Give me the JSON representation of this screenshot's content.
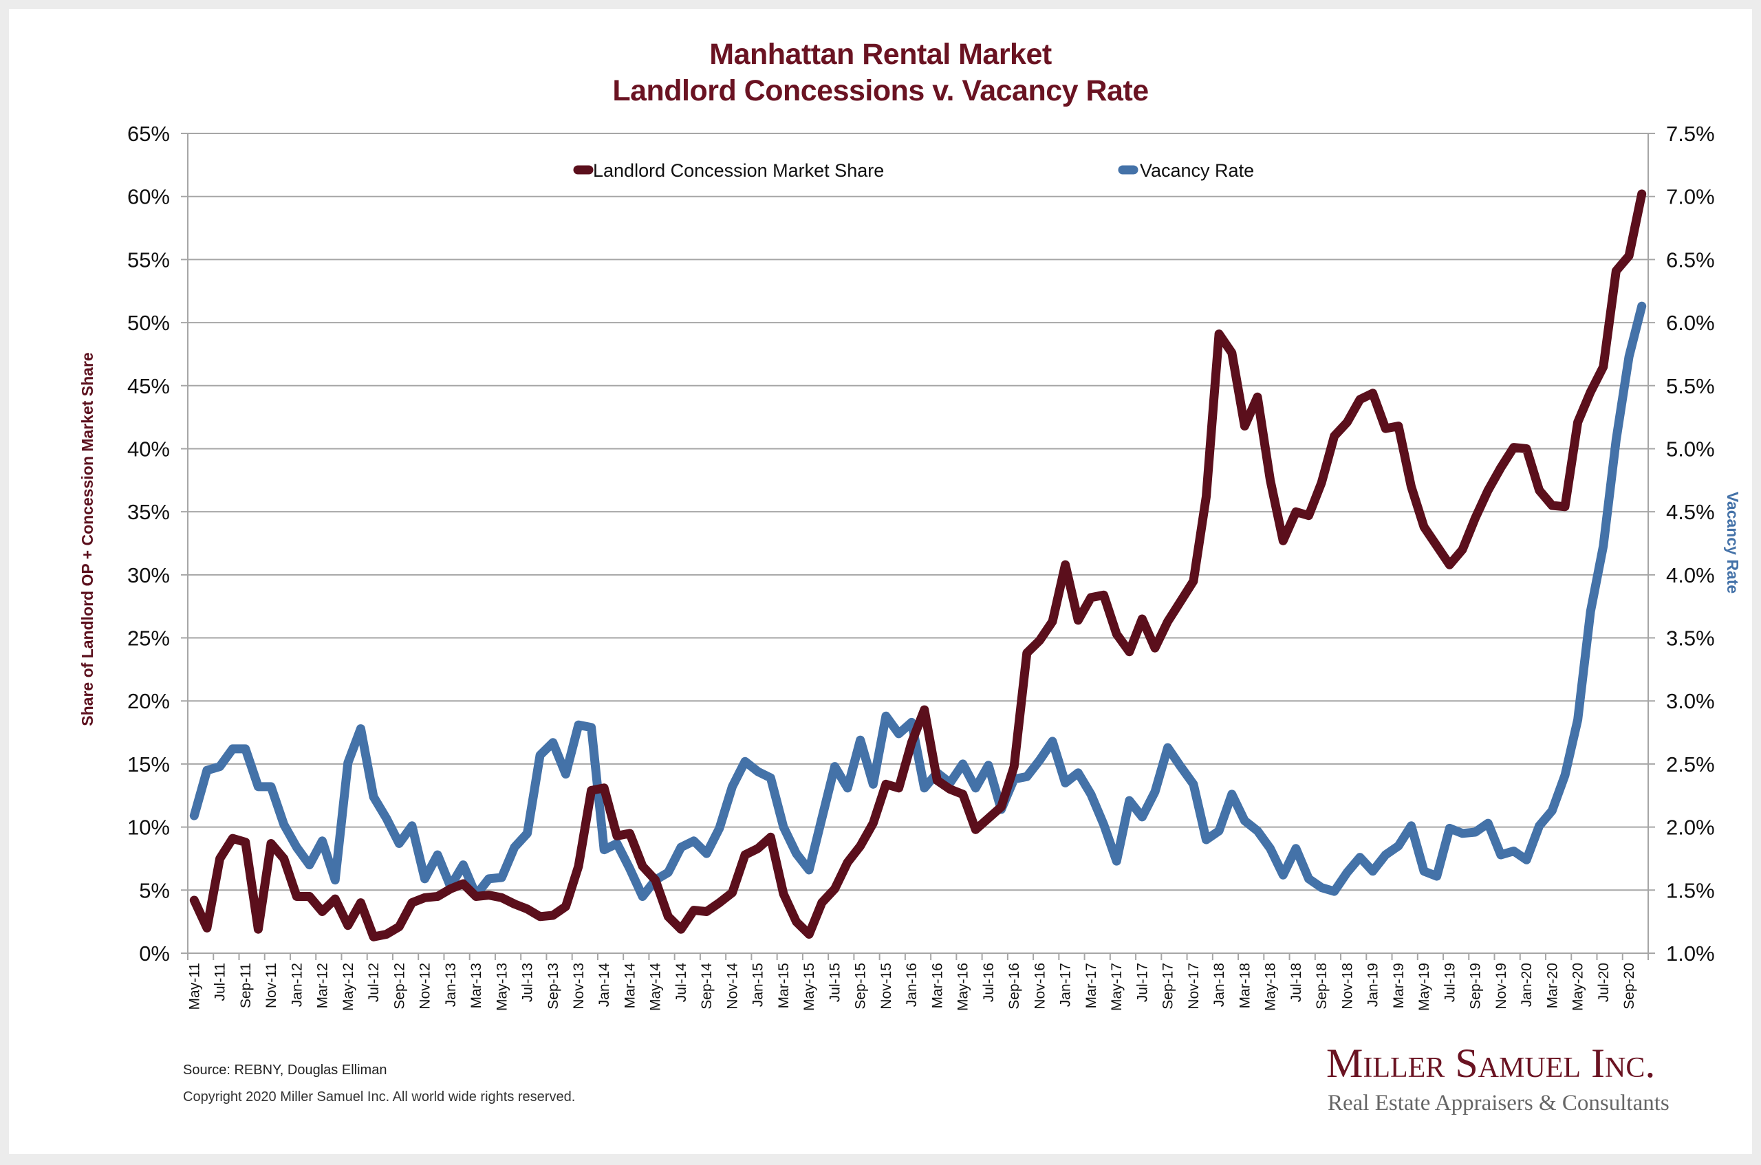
{
  "header": {
    "title_line1": "Manhattan Rental Market",
    "title_line2": "Landlord Concessions v. Vacancy Rate"
  },
  "footer": {
    "source": "Source: REBNY, Douglas Elliman",
    "copyright": "Copyright 2020 Miller Samuel Inc.  All world wide rights reserved."
  },
  "logo": {
    "name": "Miller Samuel Inc.",
    "tagline": "Real Estate Appraisers & Consultants"
  },
  "colors": {
    "concession": "#5b0f1c",
    "vacancy": "#4472a8",
    "title": "#6a1322",
    "grid": "#a6a6a6"
  },
  "chart_data": {
    "type": "line",
    "title": "Manhattan Rental Market\nLandlord Concessions v. Vacancy Rate",
    "xlabel": "",
    "ylabel": "Share of Landlord OP + Concession Market Share",
    "y2label": "Vacancy Rate",
    "ylim": [
      0,
      65
    ],
    "y2lim": [
      1.0,
      7.5
    ],
    "yticks": [
      "0%",
      "5%",
      "10%",
      "15%",
      "20%",
      "25%",
      "30%",
      "35%",
      "40%",
      "45%",
      "50%",
      "55%",
      "60%",
      "65%"
    ],
    "y2ticks": [
      "1.0%",
      "1.5%",
      "2.0%",
      "2.5%",
      "3.0%",
      "3.5%",
      "4.0%",
      "4.5%",
      "5.0%",
      "5.5%",
      "6.0%",
      "6.5%",
      "7.0%",
      "7.5%"
    ],
    "grid": true,
    "legend_position": "top-center",
    "categories": [
      "May-11",
      "Jun-11",
      "Jul-11",
      "Aug-11",
      "Sep-11",
      "Oct-11",
      "Nov-11",
      "Dec-11",
      "Jan-12",
      "Feb-12",
      "Mar-12",
      "Apr-12",
      "May-12",
      "Jun-12",
      "Jul-12",
      "Aug-12",
      "Sep-12",
      "Oct-12",
      "Nov-12",
      "Dec-12",
      "Jan-13",
      "Feb-13",
      "Mar-13",
      "Apr-13",
      "May-13",
      "Jun-13",
      "Jul-13",
      "Aug-13",
      "Sep-13",
      "Oct-13",
      "Nov-13",
      "Dec-13",
      "Jan-14",
      "Feb-14",
      "Mar-14",
      "Apr-14",
      "May-14",
      "Jun-14",
      "Jul-14",
      "Aug-14",
      "Sep-14",
      "Oct-14",
      "Nov-14",
      "Dec-14",
      "Jan-15",
      "Feb-15",
      "Mar-15",
      "Apr-15",
      "May-15",
      "Jun-15",
      "Jul-15",
      "Aug-15",
      "Sep-15",
      "Oct-15",
      "Nov-15",
      "Dec-15",
      "Jan-16",
      "Feb-16",
      "Mar-16",
      "Apr-16",
      "May-16",
      "Jun-16",
      "Jul-16",
      "Aug-16",
      "Sep-16",
      "Oct-16",
      "Nov-16",
      "Dec-16",
      "Jan-17",
      "Feb-17",
      "Mar-17",
      "Apr-17",
      "May-17",
      "Jun-17",
      "Jul-17",
      "Aug-17",
      "Sep-17",
      "Oct-17",
      "Nov-17",
      "Dec-17",
      "Jan-18",
      "Feb-18",
      "Mar-18",
      "Apr-18",
      "May-18",
      "Jun-18",
      "Jul-18",
      "Aug-18",
      "Sep-18",
      "Oct-18",
      "Nov-18",
      "Dec-18",
      "Jan-19",
      "Feb-19",
      "Mar-19",
      "Apr-19",
      "May-19",
      "Jun-19",
      "Jul-19",
      "Aug-19",
      "Sep-19",
      "Oct-19",
      "Nov-19",
      "Dec-19",
      "Jan-20",
      "Feb-20",
      "Mar-20",
      "Apr-20",
      "May-20",
      "Jun-20",
      "Jul-20",
      "Aug-20",
      "Sep-20",
      "Oct-20"
    ],
    "x_tick_labels": [
      "May-11",
      "Jul-11",
      "Sep-11",
      "Nov-11",
      "Jan-12",
      "Mar-12",
      "May-12",
      "Jul-12",
      "Sep-12",
      "Nov-12",
      "Jan-13",
      "Mar-13",
      "May-13",
      "Jul-13",
      "Sep-13",
      "Nov-13",
      "Jan-14",
      "Mar-14",
      "May-14",
      "Jul-14",
      "Sep-14",
      "Nov-14",
      "Jan-15",
      "Mar-15",
      "May-15",
      "Jul-15",
      "Sep-15",
      "Nov-15",
      "Jan-16",
      "Mar-16",
      "May-16",
      "Jul-16",
      "Sep-16",
      "Nov-16",
      "Jan-17",
      "Mar-17",
      "May-17",
      "Jul-17",
      "Sep-17",
      "Nov-17",
      "Jan-18",
      "Mar-18",
      "May-18",
      "Jul-18",
      "Sep-18",
      "Nov-18",
      "Jan-19",
      "Mar-19",
      "May-19",
      "Jul-19",
      "Sep-19",
      "Nov-19",
      "Jan-20",
      "Mar-20",
      "May-20",
      "Jul-20",
      "Sep-20"
    ],
    "series": [
      {
        "name": "Landlord Concession Market Share",
        "axis": "left",
        "unit": "%",
        "values": [
          4.2,
          2.0,
          7.5,
          9.1,
          8.8,
          1.9,
          8.7,
          7.5,
          4.5,
          4.5,
          3.3,
          4.3,
          2.2,
          4.0,
          1.3,
          1.5,
          2.1,
          4.0,
          4.4,
          4.5,
          5.1,
          5.5,
          4.5,
          4.6,
          4.4,
          3.9,
          3.5,
          2.9,
          3.0,
          3.7,
          6.9,
          12.9,
          13.1,
          9.3,
          9.5,
          6.9,
          5.8,
          2.9,
          1.9,
          3.4,
          3.3,
          4.0,
          4.8,
          7.8,
          8.3,
          9.2,
          4.7,
          2.5,
          1.5,
          4.0,
          5.1,
          7.2,
          8.5,
          10.3,
          13.4,
          13.1,
          16.7,
          19.3,
          13.7,
          13.0,
          12.6,
          9.8,
          10.7,
          11.6,
          14.8,
          23.8,
          24.8,
          26.3,
          30.8,
          26.4,
          28.2,
          28.4,
          25.3,
          23.9,
          26.5,
          24.2,
          26.3,
          27.9,
          29.5,
          36.2,
          49.1,
          47.6,
          41.8,
          44.1,
          37.5,
          32.7,
          35.0,
          34.7,
          37.3,
          41.0,
          42.1,
          43.9,
          44.4,
          41.6,
          41.8,
          37.0,
          33.8,
          32.3,
          30.8,
          32.0,
          34.5,
          36.7,
          38.5,
          40.1,
          40.0,
          36.7,
          35.5,
          35.4,
          42.1,
          44.5,
          46.5,
          54.1,
          55.3,
          60.2
        ]
      },
      {
        "name": "Vacancy Rate",
        "axis": "right",
        "unit": "%",
        "values": [
          2.09,
          2.45,
          2.48,
          2.62,
          2.62,
          2.32,
          2.32,
          2.02,
          1.84,
          1.7,
          1.89,
          1.58,
          2.51,
          2.78,
          2.24,
          2.07,
          1.87,
          2.01,
          1.59,
          1.78,
          1.53,
          1.7,
          1.46,
          1.59,
          1.6,
          1.84,
          1.95,
          2.57,
          2.67,
          2.42,
          2.81,
          2.79,
          1.82,
          1.87,
          1.67,
          1.45,
          1.58,
          1.64,
          1.84,
          1.89,
          1.79,
          1.99,
          2.32,
          2.52,
          2.44,
          2.39,
          2.0,
          1.79,
          1.66,
          2.07,
          2.48,
          2.31,
          2.69,
          2.34,
          2.88,
          2.74,
          2.83,
          2.31,
          2.43,
          2.35,
          2.5,
          2.31,
          2.49,
          2.14,
          2.38,
          2.4,
          2.53,
          2.68,
          2.35,
          2.43,
          2.26,
          2.02,
          1.73,
          2.21,
          2.08,
          2.28,
          2.63,
          2.48,
          2.34,
          1.9,
          1.97,
          2.26,
          2.05,
          1.97,
          1.83,
          1.62,
          1.83,
          1.59,
          1.52,
          1.49,
          1.64,
          1.76,
          1.65,
          1.78,
          1.85,
          2.01,
          1.65,
          1.61,
          1.99,
          1.95,
          1.96,
          2.03,
          1.78,
          1.81,
          1.74,
          2.01,
          2.13,
          2.41,
          2.85,
          3.71,
          4.23,
          5.07,
          5.73,
          6.13
        ]
      }
    ]
  }
}
